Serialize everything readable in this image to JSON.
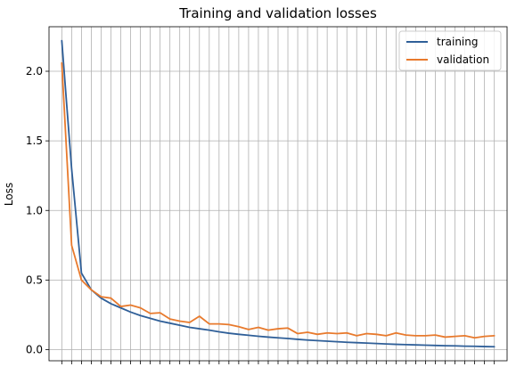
{
  "chart_data": {
    "type": "line",
    "title": "Training and validation losses",
    "xlabel": "",
    "ylabel": "Loss",
    "grid": true,
    "legend": "upper-right",
    "ylim": [
      -0.08,
      2.32
    ],
    "xlim": [
      -1.3,
      45.3
    ],
    "yticks": [
      0.0,
      0.5,
      1.0,
      1.5,
      2.0
    ],
    "ytick_labels": [
      "0.0",
      "0.5",
      "1.0",
      "1.5",
      "2.0"
    ],
    "xticks": [
      0,
      1,
      2,
      3,
      4,
      5,
      6,
      7,
      8,
      9,
      10,
      11,
      12,
      13,
      14,
      15,
      16,
      17,
      18,
      19,
      20,
      21,
      22,
      23,
      24,
      25,
      26,
      27,
      28,
      29,
      30,
      31,
      32,
      33,
      34,
      35,
      36,
      37,
      38,
      39,
      40,
      41,
      42,
      43,
      44
    ],
    "x": [
      0,
      1,
      2,
      3,
      4,
      5,
      6,
      7,
      8,
      9,
      10,
      11,
      12,
      13,
      14,
      15,
      16,
      17,
      18,
      19,
      20,
      21,
      22,
      23,
      24,
      25,
      26,
      27,
      28,
      29,
      30,
      31,
      32,
      33,
      34,
      35,
      36,
      37,
      38,
      39,
      40,
      41,
      42,
      43,
      44
    ],
    "series": [
      {
        "name": "training",
        "color": "#2f5f98",
        "values": [
          2.22,
          1.3,
          0.55,
          0.43,
          0.37,
          0.33,
          0.3,
          0.27,
          0.245,
          0.225,
          0.205,
          0.19,
          0.175,
          0.16,
          0.15,
          0.14,
          0.128,
          0.118,
          0.11,
          0.103,
          0.096,
          0.09,
          0.085,
          0.08,
          0.074,
          0.069,
          0.065,
          0.061,
          0.057,
          0.053,
          0.05,
          0.047,
          0.044,
          0.041,
          0.038,
          0.036,
          0.034,
          0.032,
          0.03,
          0.028,
          0.027,
          0.025,
          0.024,
          0.022,
          0.021
        ]
      },
      {
        "name": "validation",
        "color": "#e87a2d",
        "values": [
          2.06,
          0.75,
          0.5,
          0.43,
          0.38,
          0.37,
          0.31,
          0.32,
          0.3,
          0.26,
          0.265,
          0.22,
          0.205,
          0.195,
          0.24,
          0.185,
          0.185,
          0.18,
          0.165,
          0.145,
          0.16,
          0.14,
          0.15,
          0.155,
          0.115,
          0.125,
          0.11,
          0.12,
          0.115,
          0.12,
          0.1,
          0.115,
          0.11,
          0.1,
          0.12,
          0.105,
          0.1,
          0.1,
          0.105,
          0.09,
          0.095,
          0.1,
          0.085,
          0.095,
          0.1
        ]
      }
    ]
  }
}
